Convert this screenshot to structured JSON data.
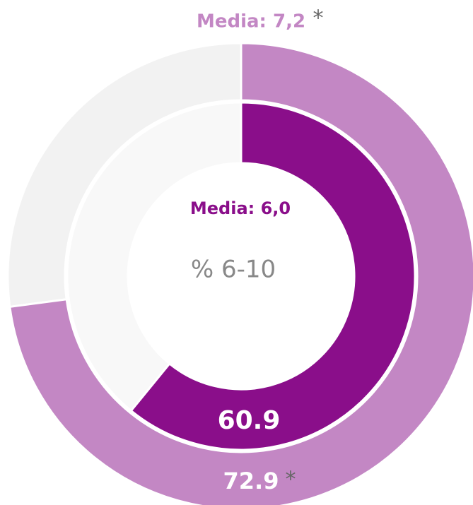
{
  "chart_data": {
    "type": "donut",
    "rings": [
      {
        "value": 72.9,
        "color": "#c387c4",
        "rest_color": "#f2f2f2",
        "title": "Media: 7,2",
        "title_note": "*",
        "value_note": "*"
      },
      {
        "value": 60.9,
        "color": "#8a0e8a",
        "rest_color": "#f8f8f8",
        "title": "Media: 6,0"
      }
    ],
    "center_label": "% 6-10"
  }
}
